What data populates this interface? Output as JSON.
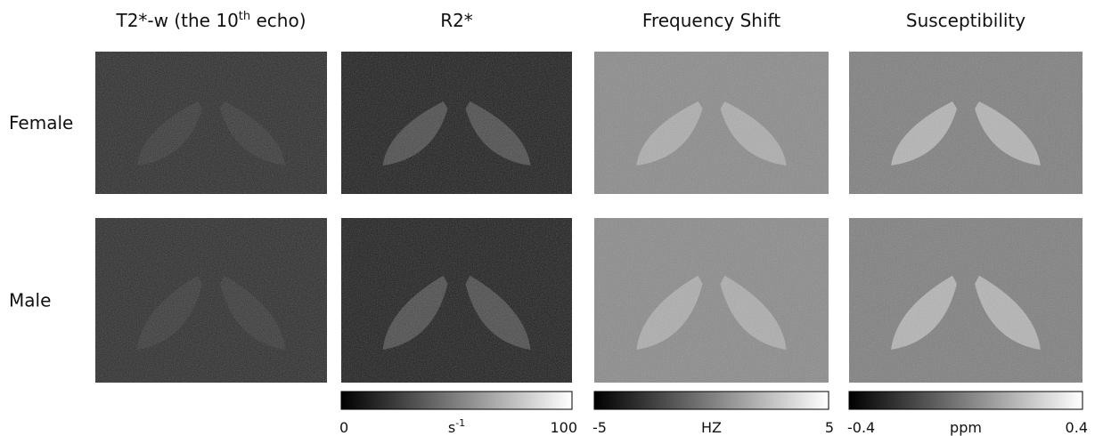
{
  "columns": [
    {
      "title": {
        "text": "T2*-w (the 10",
        "sup": "th",
        "after": " echo)"
      }
    },
    {
      "title": {
        "text": "R2*"
      }
    },
    {
      "title": {
        "text": "Frequency Shift"
      }
    },
    {
      "title": {
        "text": "Susceptibility"
      }
    }
  ],
  "rows": [
    {
      "label": "Female"
    },
    {
      "label": "Male"
    }
  ],
  "colorbars": [
    {
      "min": 0,
      "max": 100,
      "unit": {
        "text": "s",
        "sup": "-1"
      }
    },
    {
      "min": -5,
      "max": 5,
      "unit": {
        "text": "HZ"
      }
    },
    {
      "min": -0.4,
      "max": 0.4,
      "unit": {
        "text": "ppm"
      }
    }
  ]
}
